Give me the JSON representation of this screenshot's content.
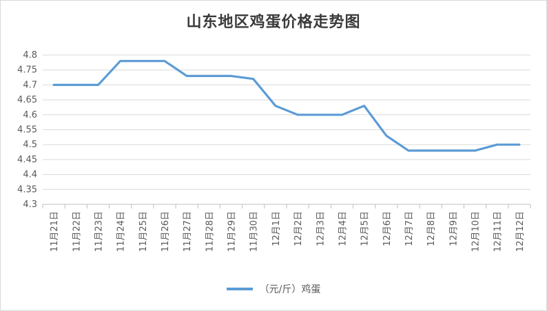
{
  "chart_data": {
    "type": "line",
    "title": "山东地区鸡蛋价格走势图",
    "xlabel": "",
    "ylabel": "",
    "categories": [
      "11月21日",
      "11月22日",
      "11月23日",
      "11月24日",
      "11月25日",
      "11月26日",
      "11月27日",
      "11月28日",
      "11月29日",
      "11月30日",
      "12月1日",
      "12月2日",
      "12月3日",
      "12月4日",
      "12月5日",
      "12月6日",
      "12月7日",
      "12月8日",
      "12月9日",
      "12月10日",
      "12月11日",
      "12月12日"
    ],
    "series": [
      {
        "name": "（元/斤）鸡蛋",
        "color": "#5b9bd5",
        "values": [
          4.7,
          4.7,
          4.7,
          4.78,
          4.78,
          4.78,
          4.73,
          4.73,
          4.73,
          4.72,
          4.63,
          4.6,
          4.6,
          4.6,
          4.63,
          4.53,
          4.48,
          4.48,
          4.48,
          4.48,
          4.5,
          4.5
        ]
      }
    ],
    "ylim": [
      4.3,
      4.8
    ],
    "yticks": [
      "4.3",
      "4.35",
      "4.4",
      "4.45",
      "4.5",
      "4.55",
      "4.6",
      "4.65",
      "4.7",
      "4.75",
      "4.8"
    ],
    "grid": true,
    "legend": "bottom"
  }
}
